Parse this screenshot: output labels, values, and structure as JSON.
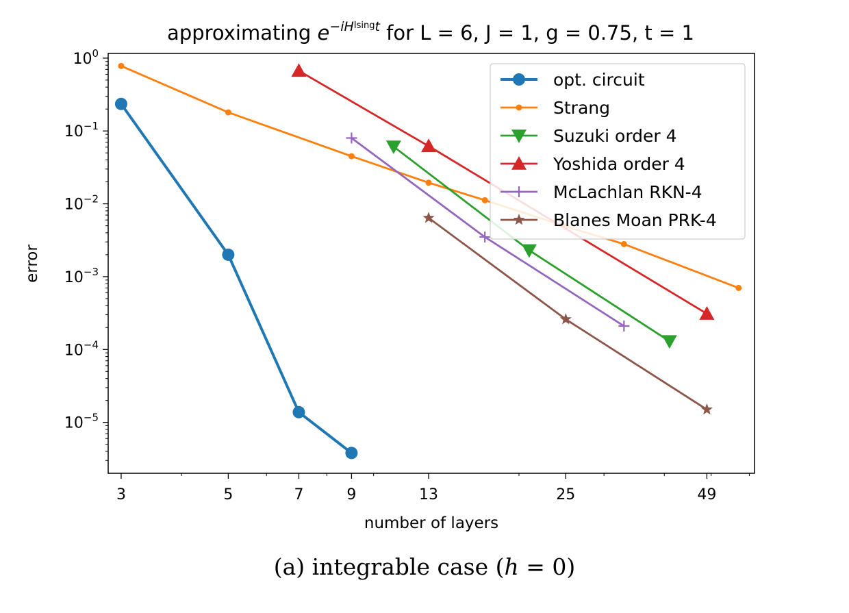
{
  "figure": {
    "caption": {
      "prefix": "(a) integrable case (",
      "var": "h",
      "suffix": " = 0)"
    }
  },
  "chart_data": {
    "type": "line",
    "title": {
      "lead": "approximating ",
      "base": "e",
      "exp_prefix": "−iH",
      "exp_sup": "Ising",
      "exp_suffix": "t",
      "tail": " for L = 6, J = 1, g = 0.75, t = 1"
    },
    "xlabel": "number of layers",
    "ylabel": "error",
    "x_scale": "log",
    "y_scale": "log",
    "xlim": [
      2.82,
      61.5
    ],
    "ylim": [
      2e-06,
      1.16
    ],
    "x_ticks": [
      3,
      5,
      7,
      9,
      13,
      25,
      49
    ],
    "y_ticks": [
      {
        "value": 1,
        "base": "10",
        "exp": "0"
      },
      {
        "value": 0.1,
        "base": "10",
        "exp": "−1"
      },
      {
        "value": 0.01,
        "base": "10",
        "exp": "−2"
      },
      {
        "value": 0.001,
        "base": "10",
        "exp": "−3"
      },
      {
        "value": 0.0001,
        "base": "10",
        "exp": "−4"
      },
      {
        "value": 1e-05,
        "base": "10",
        "exp": "−5"
      }
    ],
    "grid": false,
    "legend_position": "top-right",
    "series": [
      {
        "name": "opt. circuit",
        "color": "#1f77b4",
        "marker": "circle",
        "size": "large",
        "line_width": "thick",
        "x": [
          3,
          5,
          7,
          9
        ],
        "y": [
          0.235,
          0.002,
          1.38e-05,
          3.8e-06
        ]
      },
      {
        "name": "Strang",
        "color": "#ff7f0e",
        "marker": "circle",
        "size": "small",
        "line_width": "normal",
        "x": [
          3,
          5,
          9,
          13,
          17,
          25,
          33,
          57
        ],
        "y": [
          0.78,
          0.18,
          0.045,
          0.0195,
          0.0112,
          0.0049,
          0.0028,
          0.0007
        ]
      },
      {
        "name": "Suzuki order 4",
        "color": "#2ca02c",
        "marker": "triangle-down",
        "size": "medium",
        "line_width": "normal",
        "x": [
          11,
          21,
          41
        ],
        "y": [
          0.061,
          0.0023,
          0.00013
        ]
      },
      {
        "name": "Yoshida order 4",
        "color": "#d62728",
        "marker": "triangle-up",
        "size": "medium",
        "line_width": "normal",
        "x": [
          7,
          13,
          49
        ],
        "y": [
          0.67,
          0.062,
          0.00031
        ]
      },
      {
        "name": "McLachlan RKN-4",
        "color": "#9467bd",
        "marker": "plus",
        "size": "medium",
        "line_width": "normal",
        "x": [
          9,
          17,
          33
        ],
        "y": [
          0.08,
          0.0035,
          0.00021
        ]
      },
      {
        "name": "Blanes Moan PRK-4",
        "color": "#8c564b",
        "marker": "star",
        "size": "medium",
        "line_width": "normal",
        "x": [
          13,
          25,
          49
        ],
        "y": [
          0.0064,
          0.00026,
          1.5e-05
        ]
      }
    ]
  }
}
